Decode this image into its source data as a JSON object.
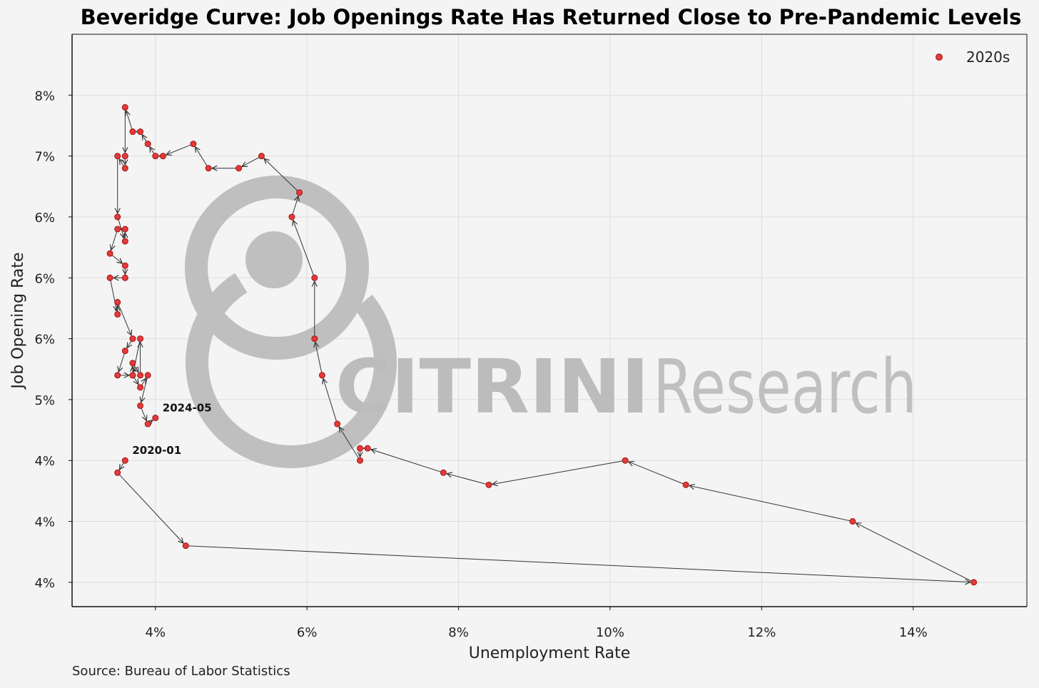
{
  "source": "Source: Bureau of Labor Statistics",
  "watermark": {
    "brand_bold": "CITRINI",
    "brand_light": "Research"
  },
  "colors": {
    "point_fill": "#e33a3a",
    "point_stroke": "#a01515",
    "arrow": "#333333",
    "grid": "#dddddd",
    "watermark": "#bcbcbc"
  },
  "chart_data": {
    "type": "scatter",
    "title": "Beveridge Curve: Job Openings Rate Has Returned Close to Pre-Pandemic Levels",
    "xlabel": "Unemployment Rate",
    "ylabel": "Job Opening Rate",
    "xlim": [
      2.9,
      15.5
    ],
    "ylim": [
      3.4,
      8.1
    ],
    "x_ticks": [
      {
        "value": 4,
        "label": "4%"
      },
      {
        "value": 6,
        "label": "6%"
      },
      {
        "value": 8,
        "label": "8%"
      },
      {
        "value": 10,
        "label": "10%"
      },
      {
        "value": 12,
        "label": "12%"
      },
      {
        "value": 14,
        "label": "14%"
      }
    ],
    "y_ticks": [
      {
        "value": 3.6,
        "label": "4%"
      },
      {
        "value": 4.1,
        "label": "4%"
      },
      {
        "value": 4.6,
        "label": "4%"
      },
      {
        "value": 5.1,
        "label": "5%"
      },
      {
        "value": 5.6,
        "label": "6%"
      },
      {
        "value": 6.1,
        "label": "6%"
      },
      {
        "value": 6.6,
        "label": "6%"
      },
      {
        "value": 7.1,
        "label": "7%"
      },
      {
        "value": 7.6,
        "label": "8%"
      }
    ],
    "grid": true,
    "legend": {
      "position": "top-right",
      "entries": [
        "2020s"
      ]
    },
    "series": [
      {
        "name": "2020s",
        "connected": true,
        "arrows": true,
        "points": [
          [
            3.6,
            4.6
          ],
          [
            3.5,
            4.5
          ],
          [
            4.4,
            3.9
          ],
          [
            14.8,
            3.6
          ],
          [
            13.2,
            4.1
          ],
          [
            11.0,
            4.4
          ],
          [
            10.2,
            4.6
          ],
          [
            8.4,
            4.4
          ],
          [
            7.8,
            4.5
          ],
          [
            6.8,
            4.7
          ],
          [
            6.7,
            4.7
          ],
          [
            6.7,
            4.6
          ],
          [
            6.4,
            4.9
          ],
          [
            6.2,
            5.3
          ],
          [
            6.1,
            5.6
          ],
          [
            6.1,
            6.1
          ],
          [
            5.8,
            6.6
          ],
          [
            5.9,
            6.8
          ],
          [
            5.4,
            7.1
          ],
          [
            5.1,
            7.0
          ],
          [
            4.7,
            7.0
          ],
          [
            4.5,
            7.2
          ],
          [
            4.1,
            7.1
          ],
          [
            4.0,
            7.1
          ],
          [
            3.9,
            7.2
          ],
          [
            3.8,
            7.3
          ],
          [
            3.7,
            7.3
          ],
          [
            3.6,
            7.5
          ],
          [
            3.6,
            7.1
          ],
          [
            3.6,
            7.0
          ],
          [
            3.5,
            7.1
          ],
          [
            3.5,
            6.6
          ],
          [
            3.6,
            6.4
          ],
          [
            3.6,
            6.5
          ],
          [
            3.5,
            6.5
          ],
          [
            3.4,
            6.3
          ],
          [
            3.6,
            6.2
          ],
          [
            3.6,
            6.1
          ],
          [
            3.4,
            6.1
          ],
          [
            3.5,
            5.8
          ],
          [
            3.5,
            5.9
          ],
          [
            3.7,
            5.6
          ],
          [
            3.6,
            5.5
          ],
          [
            3.5,
            5.3
          ],
          [
            3.7,
            5.3
          ],
          [
            3.7,
            5.4
          ],
          [
            3.8,
            5.3
          ],
          [
            3.8,
            5.6
          ],
          [
            3.7,
            5.3
          ],
          [
            3.8,
            5.2
          ],
          [
            3.9,
            5.3
          ],
          [
            3.8,
            5.05
          ],
          [
            3.9,
            4.9
          ],
          [
            4.0,
            4.95
          ]
        ]
      }
    ],
    "annotations": [
      {
        "label": "2020-01",
        "x": 3.6,
        "y": 4.6
      },
      {
        "label": "2024-05",
        "x": 4.0,
        "y": 4.95
      }
    ]
  }
}
